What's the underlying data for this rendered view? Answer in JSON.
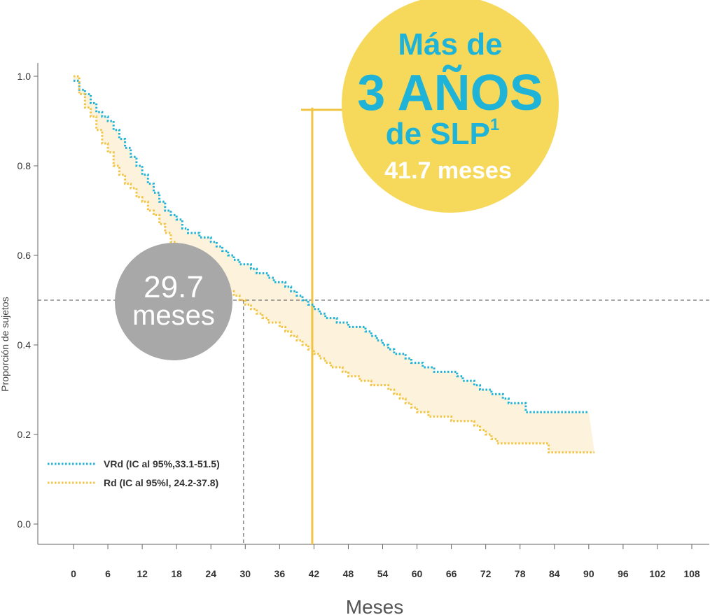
{
  "chart_data": {
    "type": "line",
    "xlabel": "Meses",
    "ylabel": "Proporción de sujetos",
    "xlim": [
      -3,
      110
    ],
    "ylim": [
      -0.04,
      1.04
    ],
    "x_ticks": [
      0,
      6,
      12,
      18,
      24,
      30,
      36,
      42,
      48,
      54,
      60,
      66,
      72,
      78,
      84,
      90,
      96,
      102,
      108
    ],
    "x_tick_labels": [
      "0",
      "6",
      "12",
      "18",
      "24",
      "30",
      "36",
      "42",
      "48",
      "54",
      "60",
      "66",
      "72",
      "78",
      "84",
      "90",
      "96",
      "102",
      "108"
    ],
    "y_ticks": [
      0.0,
      0.2,
      0.4,
      0.6,
      0.8,
      1.0
    ],
    "y_tick_labels": [
      "0.0",
      "0.2",
      "0.4",
      "0.6",
      "0.8",
      "1.0"
    ],
    "median_reference_y": 0.5,
    "series": [
      {
        "name": "VRd (IC al 95%,33.1-51.5)",
        "color": "#1fb3d8",
        "x": [
          0,
          1,
          2,
          3,
          4,
          5,
          6,
          7,
          8,
          9,
          10,
          11,
          12,
          13,
          14,
          15,
          16,
          17,
          18,
          19,
          20,
          21,
          22,
          24,
          25,
          26,
          27,
          28,
          29,
          30,
          31,
          32,
          33,
          34,
          35,
          36,
          37,
          38,
          39,
          40,
          41,
          42,
          43,
          44,
          45,
          46,
          48,
          49,
          50,
          51,
          52,
          53,
          54,
          55,
          56,
          57,
          58,
          59,
          60,
          61,
          62,
          63,
          66,
          67,
          68,
          70,
          71,
          72,
          73,
          74,
          75,
          76,
          77,
          78,
          79,
          82,
          86,
          88,
          89,
          90
        ],
        "y": [
          0.99,
          0.97,
          0.96,
          0.94,
          0.92,
          0.91,
          0.9,
          0.88,
          0.86,
          0.84,
          0.82,
          0.8,
          0.78,
          0.76,
          0.74,
          0.72,
          0.7,
          0.69,
          0.68,
          0.66,
          0.65,
          0.65,
          0.64,
          0.63,
          0.62,
          0.61,
          0.6,
          0.59,
          0.58,
          0.58,
          0.57,
          0.56,
          0.56,
          0.55,
          0.54,
          0.54,
          0.53,
          0.52,
          0.51,
          0.5,
          0.49,
          0.48,
          0.47,
          0.46,
          0.46,
          0.45,
          0.44,
          0.44,
          0.44,
          0.43,
          0.42,
          0.41,
          0.4,
          0.39,
          0.38,
          0.38,
          0.37,
          0.36,
          0.36,
          0.35,
          0.35,
          0.34,
          0.34,
          0.33,
          0.32,
          0.31,
          0.3,
          0.3,
          0.29,
          0.29,
          0.28,
          0.27,
          0.27,
          0.27,
          0.25,
          0.25,
          0.25,
          0.25,
          0.25,
          0.25
        ]
      },
      {
        "name": "Rd (IC al 95%l, 24.2-37.8)",
        "color": "#f2c443",
        "x": [
          0,
          1,
          2,
          3,
          4,
          5,
          6,
          7,
          8,
          9,
          10,
          11,
          12,
          13,
          14,
          15,
          16,
          17,
          18,
          19,
          20,
          21,
          22,
          23,
          24,
          25,
          26,
          27,
          28,
          29,
          30,
          31,
          32,
          33,
          34,
          36,
          37,
          38,
          39,
          40,
          41,
          42,
          43,
          44,
          45,
          46,
          47,
          48,
          49,
          50,
          51,
          52,
          54,
          55,
          56,
          57,
          58,
          59,
          60,
          61,
          62,
          63,
          64,
          65,
          66,
          67,
          70,
          71,
          72,
          73,
          74,
          75,
          76,
          77,
          83,
          84,
          90,
          91
        ],
        "y": [
          1.0,
          0.96,
          0.93,
          0.91,
          0.88,
          0.85,
          0.83,
          0.8,
          0.78,
          0.76,
          0.75,
          0.73,
          0.72,
          0.7,
          0.69,
          0.67,
          0.65,
          0.63,
          0.62,
          0.61,
          0.6,
          0.59,
          0.58,
          0.57,
          0.55,
          0.54,
          0.53,
          0.52,
          0.51,
          0.5,
          0.49,
          0.48,
          0.47,
          0.46,
          0.45,
          0.44,
          0.43,
          0.42,
          0.41,
          0.4,
          0.39,
          0.38,
          0.37,
          0.36,
          0.35,
          0.35,
          0.34,
          0.33,
          0.33,
          0.32,
          0.32,
          0.31,
          0.31,
          0.3,
          0.29,
          0.28,
          0.27,
          0.26,
          0.25,
          0.25,
          0.24,
          0.24,
          0.24,
          0.24,
          0.23,
          0.23,
          0.22,
          0.21,
          0.2,
          0.19,
          0.18,
          0.18,
          0.18,
          0.18,
          0.16,
          0.16,
          0.16,
          0.16
        ]
      }
    ],
    "medians": [
      {
        "x": 29.7,
        "y": 0.5,
        "line_color": "#555555",
        "style": "dashed"
      },
      {
        "x": 41.7,
        "y": 0.93,
        "line_color": "#f2c443",
        "style": "solid"
      }
    ],
    "callouts": [
      {
        "id": "vrd",
        "lines": [
          "Más de",
          "3 AÑOS",
          "de SLP",
          "41.7 meses"
        ],
        "superscript": "1",
        "circle_color": "#f6d95a",
        "text_color": "#1fb3d8",
        "last_line_color": "#ffffff"
      },
      {
        "id": "rd",
        "lines": [
          "29.7",
          "meses"
        ],
        "circle_color": "#a8a8a8",
        "text_color": "#ffffff"
      }
    ],
    "legend_position": "bottom-left",
    "shade_color": "#fdf3dc",
    "grid": false
  }
}
